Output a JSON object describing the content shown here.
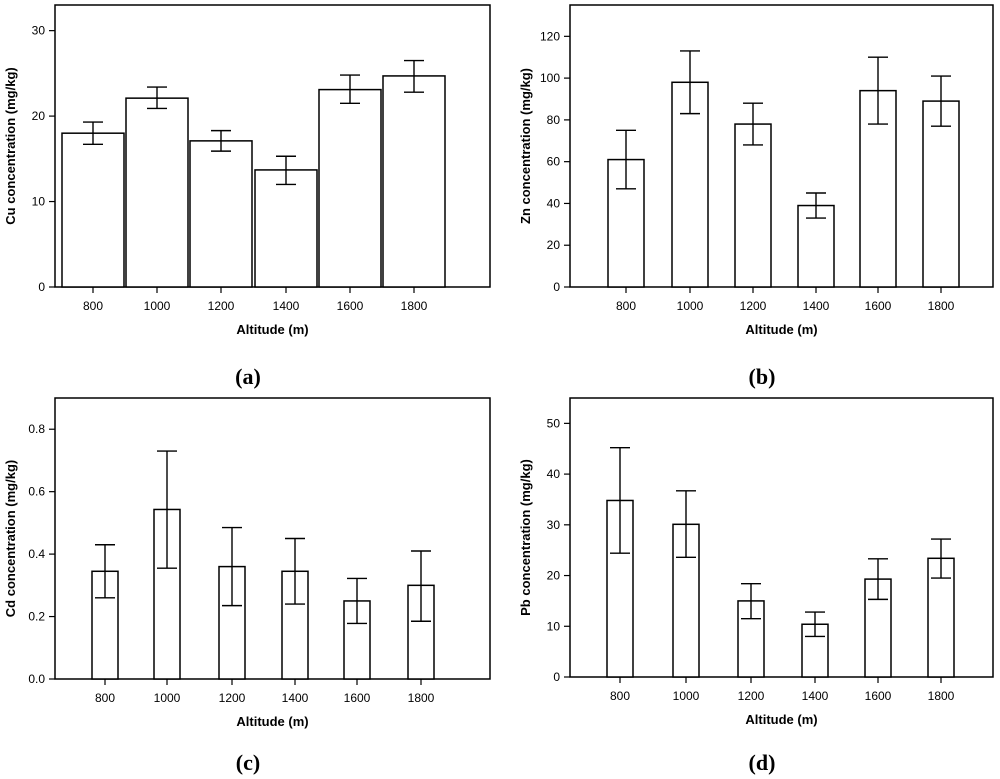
{
  "colors": {
    "axis": "#000000",
    "bar_fill": "#ffffff",
    "bar_stroke": "#000000"
  },
  "chart_data": [
    {
      "id": "a",
      "panel_label": "(a)",
      "type": "bar",
      "xlabel": "Altitude (m)",
      "ylabel": "Cu concentration (mg/kg)",
      "categories": [
        "800",
        "1000",
        "1200",
        "1400",
        "1600",
        "1800"
      ],
      "values": [
        18.0,
        22.1,
        17.1,
        13.7,
        23.1,
        24.7
      ],
      "error_low": [
        16.7,
        20.9,
        15.9,
        12.0,
        21.5,
        22.8
      ],
      "error_high": [
        19.3,
        23.4,
        18.3,
        15.3,
        24.8,
        26.5
      ],
      "ylim": [
        0,
        33
      ],
      "yticks": [
        0,
        10,
        20,
        30
      ],
      "ytick_labels": [
        "0",
        "10",
        "20",
        "30"
      ]
    },
    {
      "id": "b",
      "panel_label": "(b)",
      "type": "bar",
      "xlabel": "Altitude (m)",
      "ylabel": "Zn concentration (mg/kg)",
      "categories": [
        "800",
        "1000",
        "1200",
        "1400",
        "1600",
        "1800"
      ],
      "values": [
        61,
        98,
        78,
        39,
        94,
        89
      ],
      "error_low": [
        47,
        83,
        68,
        33,
        78,
        77
      ],
      "error_high": [
        75,
        113,
        88,
        45,
        110,
        101
      ],
      "ylim": [
        0,
        135
      ],
      "yticks": [
        0,
        20,
        40,
        60,
        80,
        100,
        120
      ],
      "ytick_labels": [
        "0",
        "20",
        "40",
        "60",
        "80",
        "100",
        "120"
      ]
    },
    {
      "id": "c",
      "panel_label": "(c)",
      "type": "bar",
      "xlabel": "Altitude (m)",
      "ylabel": "Cd concentration (mg/kg)",
      "categories": [
        "800",
        "1000",
        "1200",
        "1400",
        "1600",
        "1800"
      ],
      "values": [
        0.345,
        0.543,
        0.36,
        0.345,
        0.25,
        0.3
      ],
      "error_low": [
        0.26,
        0.355,
        0.235,
        0.24,
        0.178,
        0.185
      ],
      "error_high": [
        0.43,
        0.73,
        0.485,
        0.45,
        0.322,
        0.41
      ],
      "ylim": [
        0,
        0.9
      ],
      "yticks": [
        0,
        0.2,
        0.4,
        0.6,
        0.8
      ],
      "ytick_labels": [
        "0.0",
        "0.2",
        "0.4",
        "0.6",
        "0.8"
      ]
    },
    {
      "id": "d",
      "panel_label": "(d)",
      "type": "bar",
      "xlabel": "Altitude (m)",
      "ylabel": "Pb concentration (mg/kg)",
      "categories": [
        "800",
        "1000",
        "1200",
        "1400",
        "1600",
        "1800"
      ],
      "values": [
        34.8,
        30.1,
        15.0,
        10.4,
        19.3,
        23.4
      ],
      "error_low": [
        24.4,
        23.6,
        11.5,
        8.0,
        15.3,
        19.5
      ],
      "error_high": [
        45.2,
        36.7,
        18.4,
        12.8,
        23.3,
        27.2
      ],
      "ylim": [
        0,
        55
      ],
      "yticks": [
        0,
        10,
        20,
        30,
        40,
        50
      ],
      "ytick_labels": [
        "0",
        "10",
        "20",
        "30",
        "40",
        "50"
      ]
    }
  ]
}
